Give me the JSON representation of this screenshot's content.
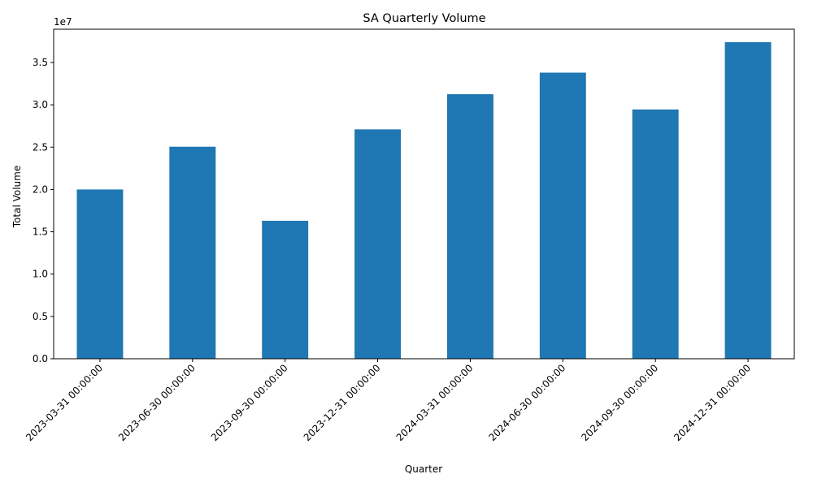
{
  "chart_data": {
    "type": "bar",
    "title": "SA Quarterly Volume",
    "xlabel": "Quarter",
    "ylabel": "Total Volume",
    "y_offset_label": "1e7",
    "categories": [
      "2023-03-31 00:00:00",
      "2023-06-30 00:00:00",
      "2023-09-30 00:00:00",
      "2023-12-31 00:00:00",
      "2024-03-31 00:00:00",
      "2024-06-30 00:00:00",
      "2024-09-30 00:00:00",
      "2024-12-31 00:00:00"
    ],
    "values": [
      20000000,
      25050000,
      16300000,
      27100000,
      31250000,
      33800000,
      29450000,
      37400000
    ],
    "ylim": [
      0,
      38930000
    ],
    "yticks": [
      0,
      5000000,
      10000000,
      15000000,
      20000000,
      25000000,
      30000000,
      35000000
    ],
    "ytick_labels": [
      "0.0",
      "0.5",
      "1.0",
      "1.5",
      "2.0",
      "2.5",
      "3.0",
      "3.5"
    ],
    "bar_color": "#1f77b4",
    "grid": false,
    "legend": "none"
  }
}
